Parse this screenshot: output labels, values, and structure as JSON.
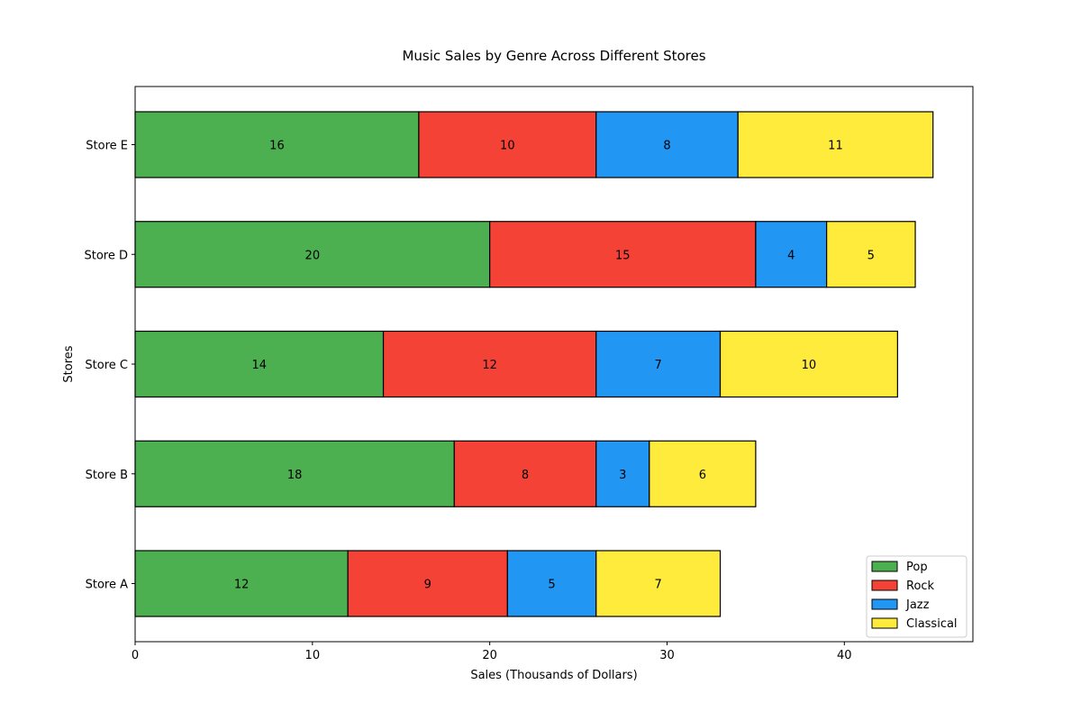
{
  "chart_data": {
    "type": "bar",
    "orientation": "horizontal",
    "stacked": true,
    "title": "Music Sales by Genre Across Different Stores",
    "xlabel": "Sales (Thousands of Dollars)",
    "ylabel": "Stores",
    "xlim": [
      0,
      47.25
    ],
    "x_ticks": [
      0,
      10,
      20,
      30,
      40
    ],
    "categories": [
      "Store A",
      "Store B",
      "Store C",
      "Store D",
      "Store E"
    ],
    "series": [
      {
        "name": "Pop",
        "color": "#4caf50",
        "values": [
          12,
          18,
          14,
          20,
          16
        ]
      },
      {
        "name": "Rock",
        "color": "#f44336",
        "values": [
          9,
          8,
          12,
          15,
          10
        ]
      },
      {
        "name": "Jazz",
        "color": "#2196f3",
        "values": [
          5,
          3,
          7,
          4,
          8
        ]
      },
      {
        "name": "Classical",
        "color": "#ffeb3b",
        "values": [
          7,
          6,
          10,
          5,
          11
        ]
      }
    ],
    "legend_position": "bottom-right",
    "grid": false,
    "bar_edge_color": "#000000"
  }
}
